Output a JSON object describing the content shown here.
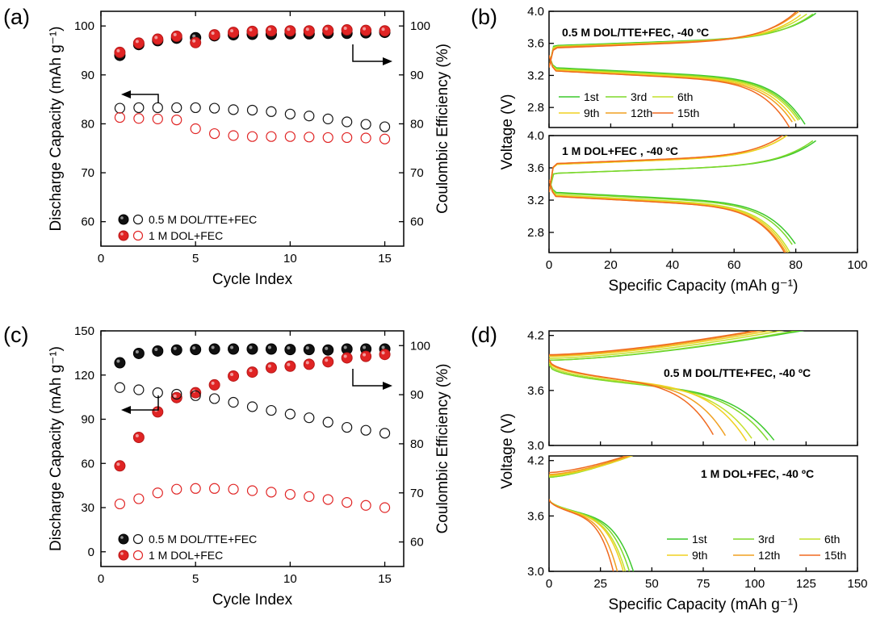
{
  "chart_data": [
    {
      "panel": "(a)",
      "type": "scatter",
      "xlabel": "Cycle Index",
      "ylabel": "Discharge Capacity (mAh g⁻¹)",
      "ylabel_right": "Coulombic Efficiency (%)",
      "xlim": [
        0,
        16
      ],
      "ylim": [
        55,
        103
      ],
      "ylim_right": [
        55,
        103
      ],
      "xticks": [
        0,
        5,
        10,
        15
      ],
      "yticks": [
        60,
        70,
        80,
        90,
        100
      ],
      "yticks_right": [
        60,
        70,
        80,
        90,
        100
      ],
      "x": [
        1,
        2,
        3,
        4,
        5,
        6,
        7,
        8,
        9,
        10,
        11,
        12,
        13,
        14,
        15
      ],
      "series": [
        {
          "name": "0.5 M DOL/TTE+FEC",
          "kind": "efficiency",
          "marker": "filled",
          "color": "#111111",
          "values": [
            94,
            96.2,
            97,
            97.5,
            97.6,
            98,
            98.2,
            98.3,
            98.3,
            98.4,
            98.4,
            98.5,
            98.5,
            98.6,
            98.7
          ]
        },
        {
          "name": "1 M DOL+FEC",
          "kind": "efficiency",
          "marker": "filled",
          "color": "#e02424",
          "values": [
            94.6,
            96.5,
            97.3,
            97.9,
            96.6,
            98.2,
            98.7,
            98.9,
            99,
            99,
            99,
            99.1,
            99.2,
            99.1,
            99
          ]
        },
        {
          "name": "0.5 M DOL/TTE+FEC",
          "kind": "capacity",
          "marker": "open",
          "color": "#111111",
          "values": [
            83.2,
            83.3,
            83.3,
            83.3,
            83.3,
            83.2,
            82.9,
            82.8,
            82.5,
            82,
            81.6,
            81,
            80.4,
            79.9,
            79.4
          ]
        },
        {
          "name": "1 M DOL+FEC",
          "kind": "capacity",
          "marker": "open",
          "color": "#e02424",
          "values": [
            81.3,
            81.1,
            81,
            80.8,
            79,
            78,
            77.6,
            77.4,
            77.4,
            77.4,
            77.3,
            77.2,
            77.2,
            77.1,
            76.9
          ]
        }
      ],
      "legend": [
        "0.5 M DOL/TTE+FEC",
        "1 M DOL+FEC"
      ]
    },
    {
      "panel": "(b)",
      "type": "line",
      "xlabel": "Specific Capacity (mAh g⁻¹)",
      "ylabel": "Voltage (V)",
      "xlim": [
        0,
        100
      ],
      "xticks": [
        0,
        20,
        40,
        60,
        80,
        100
      ],
      "subplots": [
        {
          "annotation": "0.5 M DOL/TTE+FEC, -40 ºC",
          "ylim": [
            2.55,
            4.0
          ],
          "yticks": [
            2.8,
            3.2,
            3.6,
            4.0
          ],
          "series": [
            {
              "name": "1st",
              "color": "#3cc82c",
              "charge_end": 88,
              "plateau": 3.57,
              "discharge_end": 83,
              "dis_plateau": 3.3
            },
            {
              "name": "3rd",
              "color": "#7fd82a",
              "charge_end": 87,
              "plateau": 3.56,
              "discharge_end": 82.5,
              "dis_plateau": 3.29
            },
            {
              "name": "6th",
              "color": "#c4e02a",
              "charge_end": 85,
              "plateau": 3.56,
              "discharge_end": 82,
              "dis_plateau": 3.28
            },
            {
              "name": "9th",
              "color": "#f0d020",
              "charge_end": 83,
              "plateau": 3.55,
              "discharge_end": 81,
              "dis_plateau": 3.27
            },
            {
              "name": "12th",
              "color": "#f0a020",
              "charge_end": 81,
              "plateau": 3.55,
              "discharge_end": 80,
              "dis_plateau": 3.26
            },
            {
              "name": "15th",
              "color": "#f06a20",
              "charge_end": 80,
              "plateau": 3.54,
              "discharge_end": 78,
              "dis_plateau": 3.26
            }
          ]
        },
        {
          "annotation": "1 M DOL+FEC , -40 ºC",
          "ylim": [
            2.55,
            4.0
          ],
          "yticks": [
            2.8,
            3.2,
            3.6,
            4.0
          ],
          "series": [
            {
              "name": "1st",
              "color": "#3cc82c",
              "charge_end": 88,
              "plateau": 3.53,
              "discharge_end": 81,
              "dis_plateau": 3.3
            },
            {
              "name": "3rd",
              "color": "#7fd82a",
              "charge_end": 87,
              "plateau": 3.53,
              "discharge_end": 80,
              "dis_plateau": 3.29
            },
            {
              "name": "6th",
              "color": "#c4e02a",
              "charge_end": 80,
              "plateau": 3.64,
              "discharge_end": 78,
              "dis_plateau": 3.27
            },
            {
              "name": "9th",
              "color": "#f0d020",
              "charge_end": 80,
              "plateau": 3.64,
              "discharge_end": 77.5,
              "dis_plateau": 3.26
            },
            {
              "name": "12th",
              "color": "#f0a020",
              "charge_end": 79,
              "plateau": 3.65,
              "discharge_end": 77,
              "dis_plateau": 3.25
            },
            {
              "name": "15th",
              "color": "#f06a20",
              "charge_end": 79,
              "plateau": 3.65,
              "discharge_end": 76.5,
              "dis_plateau": 3.25
            }
          ]
        }
      ],
      "legend": [
        "1st",
        "3rd",
        "6th",
        "9th",
        "12th",
        "15th"
      ]
    },
    {
      "panel": "(c)",
      "type": "scatter",
      "xlabel": "Cycle Index",
      "ylabel": "Discharge Capacity (mAh g⁻¹)",
      "ylabel_right": "Coulombic Efficiency (%)",
      "xlim": [
        0,
        16
      ],
      "ylim": [
        -10,
        150
      ],
      "ylim_right": [
        55,
        103
      ],
      "xticks": [
        0,
        5,
        10,
        15
      ],
      "yticks": [
        0,
        30,
        60,
        90,
        120,
        150
      ],
      "yticks_right": [
        60,
        70,
        80,
        90,
        100
      ],
      "x": [
        1,
        2,
        3,
        4,
        5,
        6,
        7,
        8,
        9,
        10,
        11,
        12,
        13,
        14,
        15
      ],
      "series": [
        {
          "name": "0.5 M DOL/TTE+FEC",
          "kind": "efficiency",
          "marker": "filled",
          "color": "#111111",
          "values": [
            96.5,
            98.4,
            98.9,
            99.1,
            99.2,
            99.3,
            99.3,
            99.3,
            99.3,
            99.2,
            99.2,
            99.1,
            99.3,
            99.3,
            99.3
          ]
        },
        {
          "name": "1 M DOL+FEC",
          "kind": "efficiency",
          "marker": "filled",
          "color": "#e02424",
          "values": [
            75.5,
            81.3,
            86.5,
            89.4,
            90.4,
            92,
            93.8,
            94.6,
            95.5,
            95.8,
            96.2,
            96.7,
            97.5,
            97.8,
            98.2
          ]
        },
        {
          "name": "0.5 M DOL/TTE+FEC",
          "kind": "capacity",
          "marker": "open",
          "color": "#111111",
          "values": [
            111.5,
            110,
            108,
            107,
            106,
            104,
            101.5,
            98.5,
            96,
            93.5,
            91,
            88,
            84.5,
            82.5,
            80.5
          ]
        },
        {
          "name": "1 M DOL+FEC",
          "kind": "capacity",
          "marker": "open",
          "color": "#e02424",
          "values": [
            32.5,
            36,
            40,
            42.5,
            43,
            43,
            42.5,
            41.5,
            40.5,
            39,
            37.5,
            35.5,
            33.5,
            31.5,
            30
          ]
        }
      ],
      "legend": [
        "0.5 M DOL/TTE+FEC",
        "1 M DOL+FEC"
      ]
    },
    {
      "panel": "(d)",
      "type": "line",
      "xlabel": "Specific Capacity (mAh g⁻¹)",
      "ylabel": "Voltage (V)",
      "xlim": [
        0,
        150
      ],
      "xticks": [
        0,
        25,
        50,
        75,
        100,
        125,
        150
      ],
      "subplots": [
        {
          "annotation": "0.5 M DOL/TTE+FEC, -40 ºC",
          "ylim": [
            3.0,
            4.25
          ],
          "yticks": [
            3.0,
            3.6,
            4.2
          ],
          "series": [
            {
              "name": "1st",
              "color": "#3cc82c",
              "charge_end": 135,
              "start": 3.88,
              "discharge_end": 111
            },
            {
              "name": "3rd",
              "color": "#7fd82a",
              "charge_end": 132,
              "start": 3.88,
              "discharge_end": 108
            },
            {
              "name": "6th",
              "color": "#c4e02a",
              "charge_end": 125,
              "start": 3.9,
              "discharge_end": 100
            },
            {
              "name": "9th",
              "color": "#f0d020",
              "charge_end": 120,
              "start": 3.92,
              "discharge_end": 96
            },
            {
              "name": "12th",
              "color": "#f0a020",
              "charge_end": 115,
              "start": 3.93,
              "discharge_end": 87
            },
            {
              "name": "15th",
              "color": "#f06a20",
              "charge_end": 112,
              "start": 3.94,
              "discharge_end": 81
            }
          ]
        },
        {
          "annotation": "1 M DOL+FEC, -40 ºC",
          "ylim": [
            3.0,
            4.25
          ],
          "yticks": [
            3.0,
            3.6,
            4.2
          ],
          "series": [
            {
              "name": "1st",
              "color": "#3cc82c",
              "charge_end": 42,
              "start": 3.97,
              "discharge_end": 42
            },
            {
              "name": "3rd",
              "color": "#7fd82a",
              "charge_end": 44,
              "start": 3.97,
              "discharge_end": 40
            },
            {
              "name": "6th",
              "color": "#c4e02a",
              "charge_end": 46,
              "start": 3.98,
              "discharge_end": 38
            },
            {
              "name": "9th",
              "color": "#f0d020",
              "charge_end": 46,
              "start": 3.99,
              "discharge_end": 37
            },
            {
              "name": "12th",
              "color": "#f0a020",
              "charge_end": 45,
              "start": 4.0,
              "discharge_end": 34
            },
            {
              "name": "15th",
              "color": "#f06a20",
              "charge_end": 44,
              "start": 4.02,
              "discharge_end": 32
            }
          ]
        }
      ],
      "legend": [
        "1st",
        "3rd",
        "6th",
        "9th",
        "12th",
        "15th"
      ]
    }
  ]
}
